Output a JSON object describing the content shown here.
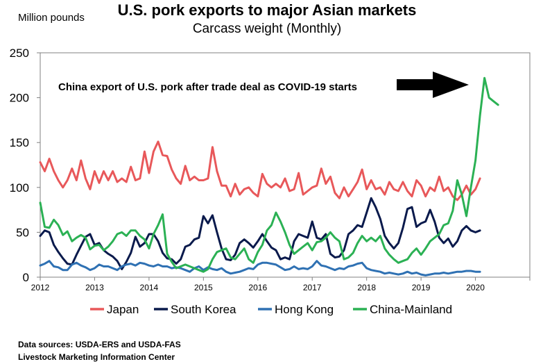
{
  "header": {
    "title": "U.S. pork exports to major Asian markets",
    "subtitle": "Carcass weight (Monthly)",
    "unit_label": "Million pounds"
  },
  "annotation": {
    "text": "China export of U.S. pork after trade deal as COVID-19 starts"
  },
  "footer": {
    "source_line_1": "Data sources: USDA-ERS and USDA-FAS",
    "source_line_2": "Livestock Marketing Information Center"
  },
  "chart_data": {
    "type": "line",
    "title": "U.S. pork exports to major Asian markets",
    "subtitle": "Carcass weight (Monthly)",
    "ylabel": "Million pounds",
    "xlabel": "",
    "ylim": [
      0,
      250
    ],
    "yticks": [
      0,
      50,
      100,
      150,
      200,
      250
    ],
    "xlim": [
      2012,
      2021
    ],
    "xticks": [
      2012,
      2013,
      2014,
      2015,
      2016,
      2017,
      2018,
      2019,
      2020
    ],
    "xtick_labels": [
      "2012",
      "2013",
      "2014",
      "2015",
      "2016",
      "2017",
      "2018",
      "2019",
      "2020"
    ],
    "grid": false,
    "legend_position": "bottom",
    "series": [
      {
        "name": "Japan",
        "color": "#e8585a",
        "values": [
          128,
          118,
          132,
          118,
          108,
          100,
          108,
          121,
          108,
          130,
          110,
          98,
          118,
          105,
          118,
          108,
          118,
          106,
          110,
          106,
          123,
          108,
          110,
          140,
          116,
          140,
          151,
          136,
          135,
          120,
          110,
          104,
          124,
          108,
          112,
          108,
          108,
          110,
          145,
          118,
          102,
          102,
          90,
          104,
          92,
          98,
          100,
          94,
          90,
          115,
          104,
          100,
          104,
          100,
          110,
          96,
          98,
          116,
          92,
          96,
          100,
          102,
          121,
          104,
          112,
          94,
          88,
          100,
          90,
          98,
          106,
          120,
          98,
          108,
          98,
          100,
          92,
          106,
          98,
          96,
          106,
          96,
          90,
          108,
          102,
          90,
          100,
          96,
          112,
          96,
          100,
          90,
          86,
          92,
          102,
          92,
          98,
          110
        ]
      },
      {
        "name": "South Korea",
        "color": "#0a1a4c",
        "values": [
          46,
          52,
          50,
          36,
          28,
          21,
          15,
          14,
          25,
          35,
          45,
          48,
          36,
          38,
          30,
          26,
          23,
          18,
          9,
          17,
          27,
          45,
          34,
          38,
          48,
          48,
          40,
          27,
          21,
          20,
          15,
          20,
          34,
          36,
          42,
          44,
          68,
          60,
          69,
          50,
          32,
          20,
          19,
          25,
          38,
          42,
          38,
          33,
          40,
          48,
          40,
          33,
          30,
          20,
          22,
          20,
          40,
          48,
          46,
          44,
          62,
          44,
          42,
          48,
          26,
          22,
          23,
          30,
          48,
          52,
          58,
          56,
          72,
          88,
          78,
          65,
          46,
          38,
          32,
          38,
          55,
          76,
          78,
          56,
          60,
          62,
          75,
          62,
          44,
          38,
          43,
          34,
          40,
          52,
          57,
          52,
          50,
          52
        ]
      },
      {
        "name": "Hong Kong",
        "color": "#2f71b3",
        "values": [
          13,
          15,
          18,
          12,
          11,
          8,
          8,
          14,
          16,
          13,
          11,
          8,
          10,
          14,
          12,
          12,
          10,
          8,
          12,
          14,
          15,
          13,
          16,
          15,
          13,
          12,
          14,
          12,
          12,
          10,
          11,
          10,
          8,
          6,
          10,
          12,
          8,
          11,
          9,
          8,
          10,
          6,
          4,
          5,
          6,
          8,
          10,
          9,
          14,
          16,
          16,
          15,
          14,
          11,
          8,
          9,
          12,
          9,
          10,
          9,
          12,
          18,
          13,
          12,
          10,
          8,
          10,
          9,
          12,
          13,
          15,
          16,
          10,
          8,
          7,
          6,
          4,
          5,
          4,
          3,
          4,
          6,
          4,
          5,
          3,
          2,
          3,
          4,
          4,
          5,
          4,
          5,
          6,
          6,
          7,
          7,
          6,
          6
        ]
      },
      {
        "name": "China-Mainland",
        "color": "#2bb154",
        "values": [
          83,
          56,
          55,
          64,
          58,
          47,
          51,
          40,
          44,
          47,
          44,
          31,
          35,
          36,
          30,
          34,
          40,
          48,
          50,
          46,
          52,
          52,
          46,
          42,
          32,
          48,
          58,
          70,
          26,
          17,
          10,
          12,
          14,
          12,
          10,
          8,
          6,
          9,
          20,
          28,
          30,
          32,
          22,
          20,
          26,
          32,
          20,
          16,
          28,
          36,
          52,
          58,
          72,
          62,
          50,
          36,
          26,
          30,
          34,
          38,
          30,
          39,
          40,
          44,
          50,
          44,
          40,
          20,
          22,
          27,
          38,
          46,
          40,
          44,
          40,
          46,
          32,
          25,
          20,
          16,
          18,
          20,
          27,
          32,
          25,
          32,
          40,
          44,
          48,
          58,
          60,
          74,
          108,
          92,
          68,
          100,
          130,
          180,
          222,
          200,
          196,
          192
        ]
      }
    ],
    "x_start_year": 2012,
    "months_per_year": 12,
    "annotation": "China export of U.S. pork after trade deal as COVID-19 starts"
  }
}
